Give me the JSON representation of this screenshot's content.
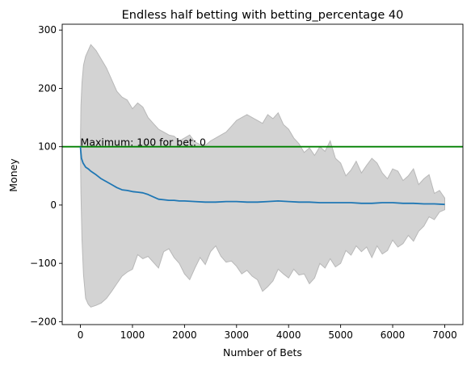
{
  "chart_data": {
    "type": "line",
    "title": "Endless half betting with betting_percentage 40",
    "xlabel": "Number of Bets",
    "ylabel": "Money",
    "xlim": [
      -350,
      7350
    ],
    "ylim": [
      -205,
      310
    ],
    "xticks": [
      0,
      1000,
      2000,
      3000,
      4000,
      5000,
      6000,
      7000
    ],
    "yticks": [
      -200,
      -100,
      0,
      100,
      200,
      300
    ],
    "grid": false,
    "reference_line": {
      "y": 100,
      "color": "#008000"
    },
    "annotation": {
      "text": "Maximum: 100 for bet: 0",
      "x": 0,
      "y": 100
    },
    "series": [
      {
        "color": "#1f77b4",
        "x": [
          0,
          20,
          50,
          100,
          150,
          200,
          300,
          400,
          500,
          600,
          700,
          800,
          900,
          1000,
          1100,
          1200,
          1300,
          1400,
          1500,
          1600,
          1700,
          1800,
          1900,
          2000,
          2200,
          2400,
          2600,
          2800,
          3000,
          3200,
          3400,
          3600,
          3800,
          4000,
          4200,
          4400,
          4600,
          4800,
          5000,
          5200,
          5400,
          5600,
          5800,
          6000,
          6200,
          6400,
          6600,
          6800,
          7000
        ],
        "y": [
          100,
          80,
          72,
          65,
          62,
          58,
          52,
          45,
          40,
          35,
          30,
          26,
          25,
          23,
          22,
          21,
          18,
          14,
          10,
          9,
          8,
          8,
          7,
          7,
          6,
          5,
          5,
          6,
          6,
          5,
          5,
          6,
          7,
          6,
          5,
          5,
          4,
          4,
          4,
          4,
          3,
          3,
          4,
          4,
          3,
          3,
          2,
          2,
          1
        ]
      }
    ],
    "band": {
      "color": "#d3d3d3",
      "x": [
        0,
        10,
        30,
        60,
        100,
        150,
        200,
        300,
        400,
        500,
        600,
        700,
        800,
        900,
        1000,
        1100,
        1200,
        1300,
        1400,
        1500,
        1600,
        1700,
        1800,
        1900,
        2000,
        2100,
        2200,
        2300,
        2400,
        2500,
        2600,
        2700,
        2800,
        2900,
        3000,
        3100,
        3200,
        3300,
        3400,
        3500,
        3600,
        3700,
        3800,
        3900,
        4000,
        4100,
        4200,
        4300,
        4400,
        4500,
        4600,
        4700,
        4800,
        4900,
        5000,
        5100,
        5200,
        5300,
        5400,
        5500,
        5600,
        5700,
        5800,
        5900,
        6000,
        6100,
        6200,
        6300,
        6400,
        6500,
        6600,
        6700,
        6800,
        6900,
        7000
      ],
      "upper": [
        100,
        170,
        210,
        240,
        255,
        265,
        275,
        265,
        250,
        235,
        215,
        195,
        185,
        180,
        165,
        175,
        168,
        150,
        140,
        130,
        125,
        120,
        118,
        110,
        115,
        120,
        108,
        104,
        102,
        110,
        115,
        120,
        125,
        135,
        145,
        150,
        155,
        150,
        145,
        140,
        155,
        148,
        158,
        138,
        130,
        115,
        105,
        90,
        98,
        85,
        100,
        92,
        110,
        80,
        72,
        50,
        60,
        75,
        55,
        68,
        80,
        72,
        55,
        45,
        62,
        58,
        42,
        50,
        62,
        35,
        45,
        52,
        20,
        25,
        12
      ],
      "lower": [
        100,
        20,
        -60,
        -120,
        -160,
        -170,
        -175,
        -172,
        -168,
        -160,
        -148,
        -135,
        -122,
        -115,
        -110,
        -85,
        -92,
        -88,
        -98,
        -108,
        -80,
        -75,
        -90,
        -100,
        -118,
        -128,
        -108,
        -90,
        -102,
        -80,
        -70,
        -88,
        -98,
        -96,
        -105,
        -118,
        -112,
        -122,
        -128,
        -148,
        -140,
        -130,
        -110,
        -118,
        -125,
        -110,
        -120,
        -118,
        -135,
        -125,
        -100,
        -108,
        -92,
        -106,
        -100,
        -78,
        -86,
        -70,
        -80,
        -72,
        -90,
        -70,
        -84,
        -78,
        -60,
        -72,
        -66,
        -52,
        -62,
        -45,
        -36,
        -20,
        -25,
        -12,
        -8
      ]
    }
  }
}
